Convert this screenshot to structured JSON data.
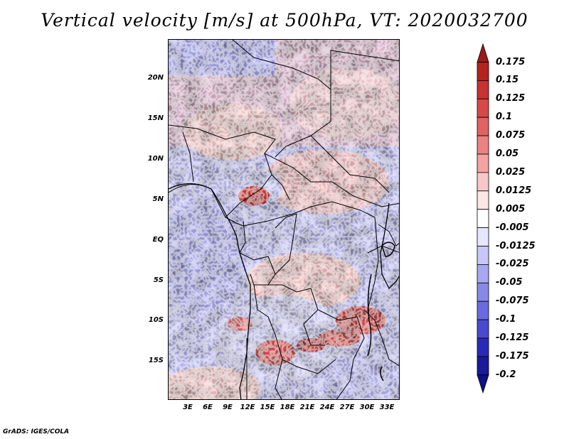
{
  "title": "Vertical velocity [m/s] at 500hPa, VT: 2020032700",
  "credit": "GrADS: IGES/COLA",
  "map": {
    "lat_labels": [
      "20N",
      "15N",
      "10N",
      "5N",
      "EQ",
      "5S",
      "10S",
      "15S"
    ],
    "lon_labels": [
      "3E",
      "6E",
      "9E",
      "12E",
      "15E",
      "18E",
      "21E",
      "24E",
      "27E",
      "30E",
      "33E"
    ],
    "lat_range": [
      -20,
      25
    ],
    "lon_range": [
      0,
      35
    ]
  },
  "colorbar": {
    "labels": [
      "0.175",
      "0.15",
      "0.125",
      "0.1",
      "0.075",
      "0.05",
      "0.025",
      "0.0125",
      "0.005",
      "-0.005",
      "-0.0125",
      "-0.025",
      "-0.05",
      "-0.075",
      "-0.1",
      "-0.125",
      "-0.175",
      "-0.2"
    ],
    "colors": [
      "#a01818",
      "#b52222",
      "#c83232",
      "#d84848",
      "#e06262",
      "#ea8282",
      "#f2a4a4",
      "#f8c8c8",
      "#fce6e6",
      "#ffffff",
      "#e6e6ff",
      "#c8c8f8",
      "#a8a8f0",
      "#8888e8",
      "#6a6ae0",
      "#4a4ad0",
      "#2a2ab8",
      "#1a1a9a",
      "#10108a"
    ]
  }
}
